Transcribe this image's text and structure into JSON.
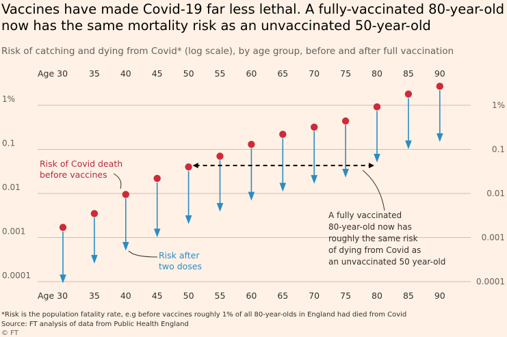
{
  "title": "Vaccines have made Covid-19 far less lethal. A fully-vaccinated 80-year-old now has the same mortality risk as an unvaccinated 50-year-old",
  "subtitle": "Risk of catching and dying from Covid* (log scale), by age group, before and after full vaccination",
  "footnote": "*Risk is the population fatality rate, e.g before vaccines roughly 1% of all 80-year-olds in England had died from Covid",
  "source": "Source: FT analysis of data from Public Health England",
  "credit": "© FT",
  "annotations": {
    "before_line1": "Risk of Covid death",
    "before_line2": "before vaccines",
    "after_line1": "Risk after",
    "after_line2": "two doses",
    "note_lines": [
      "A fully vaccinated",
      "80-year-old now has",
      "roughly the same risk",
      "of dying from Covid as",
      "an unvaccinated 50 year-old"
    ]
  },
  "colors": {
    "background": "#fff1e5",
    "before": "#cc2b3a",
    "after": "#2a8cc4",
    "grid": "#c9c0b8"
  },
  "chart_data": {
    "type": "scatter",
    "scale": "log",
    "categories": [
      "30",
      "35",
      "40",
      "45",
      "50",
      "55",
      "60",
      "65",
      "70",
      "75",
      "80",
      "85",
      "90"
    ],
    "first_tick_label": "Age 30",
    "y_ticks": [
      0.0001,
      0.001,
      0.01,
      0.1,
      1
    ],
    "y_tick_labels": [
      "0.0001",
      "0.001",
      "0.01",
      "0.1",
      "1%"
    ],
    "ylim": [
      0.0001,
      3
    ],
    "series": [
      {
        "name": "Risk of Covid death before vaccines",
        "values": [
          0.0017,
          0.0035,
          0.0095,
          0.022,
          0.04,
          0.07,
          0.13,
          0.22,
          0.32,
          0.44,
          0.92,
          1.8,
          2.7
        ]
      },
      {
        "name": "Risk after two doses",
        "values": [
          0.0001,
          0.00028,
          0.00055,
          0.0011,
          0.0022,
          0.0042,
          0.0075,
          0.012,
          0.018,
          0.025,
          0.055,
          0.11,
          0.16
        ]
      }
    ],
    "comparison": {
      "from": "50",
      "to": "80"
    }
  }
}
